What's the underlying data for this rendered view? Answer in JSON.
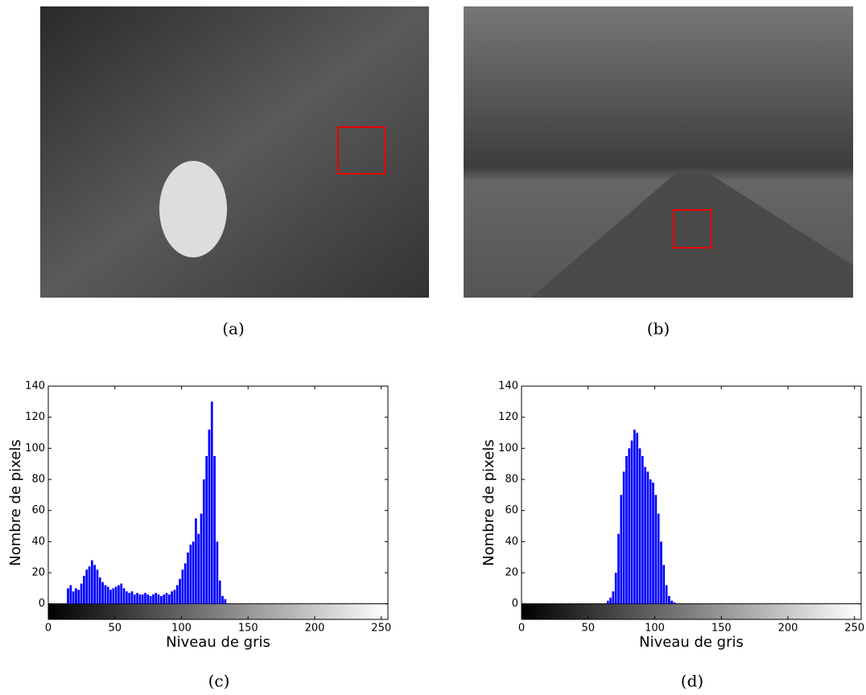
{
  "figure": {
    "captions": [
      "(a)",
      "(b)",
      "(c)",
      "(d)"
    ]
  },
  "chart_data": [
    {
      "type": "histogram",
      "xlabel": "Niveau de gris",
      "ylabel": "Nombre de pixels",
      "color": "#0000ff",
      "bins": [
        14,
        16,
        18,
        20,
        22,
        24,
        26,
        28,
        30,
        32,
        34,
        36,
        38,
        40,
        42,
        44,
        46,
        48,
        50,
        52,
        54,
        56,
        58,
        60,
        62,
        64,
        66,
        68,
        70,
        72,
        74,
        76,
        78,
        80,
        82,
        84,
        86,
        88,
        90,
        92,
        94,
        96,
        98,
        100,
        102,
        104,
        106,
        108,
        110,
        112,
        114,
        116,
        118,
        120,
        122,
        124,
        126,
        128,
        130,
        132,
        134
      ],
      "values": [
        10,
        12,
        8,
        10,
        9,
        13,
        18,
        22,
        24,
        28,
        25,
        22,
        17,
        14,
        12,
        11,
        9,
        10,
        11,
        12,
        13,
        10,
        8,
        7,
        8,
        6,
        7,
        6,
        6,
        7,
        6,
        5,
        6,
        7,
        6,
        5,
        6,
        7,
        6,
        8,
        9,
        12,
        16,
        22,
        26,
        33,
        38,
        40,
        55,
        45,
        58,
        80,
        95,
        112,
        130,
        95,
        40,
        15,
        5,
        3
      ],
      "xlim": [
        0,
        255
      ],
      "ylim": [
        -10,
        140
      ],
      "xticks": [
        0,
        50,
        100,
        150,
        200,
        250
      ],
      "yticks": [
        0,
        20,
        40,
        60,
        80,
        100,
        120,
        140
      ]
    },
    {
      "type": "histogram",
      "xlabel": "Niveau de gris",
      "ylabel": "Nombre de pixels",
      "color": "#0000ff",
      "bins": [
        64,
        66,
        68,
        70,
        72,
        74,
        76,
        78,
        80,
        82,
        84,
        86,
        88,
        90,
        92,
        94,
        96,
        98,
        100,
        102,
        104,
        106,
        108,
        110,
        112,
        114,
        116
      ],
      "values": [
        2,
        4,
        8,
        20,
        45,
        70,
        85,
        95,
        100,
        105,
        112,
        110,
        100,
        95,
        88,
        85,
        80,
        78,
        70,
        58,
        40,
        25,
        12,
        5,
        2,
        1
      ],
      "xlim": [
        0,
        255
      ],
      "ylim": [
        -10,
        140
      ],
      "xticks": [
        0,
        50,
        100,
        150,
        200,
        250
      ],
      "yticks": [
        0,
        20,
        40,
        60,
        80,
        100,
        120,
        140
      ]
    }
  ]
}
